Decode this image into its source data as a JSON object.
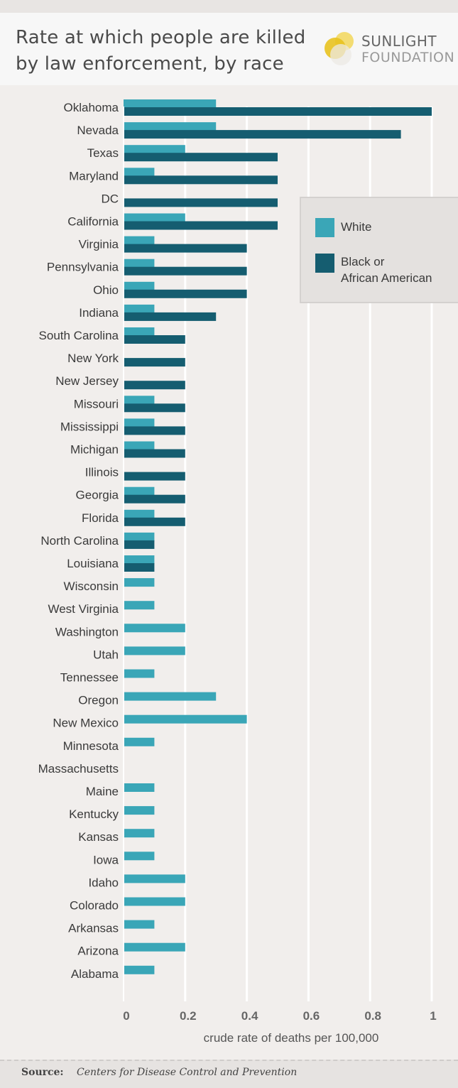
{
  "header": {
    "title": "Rate at which people are killed by law enforcement, by race",
    "logo_line1": "SUNLIGHT",
    "logo_line2": "FOUNDATION"
  },
  "legend": {
    "white_label": "White",
    "black_label_line1": "Black or",
    "black_label_line2": "African American"
  },
  "colors": {
    "white": "#3aa6b7",
    "black": "#155d70",
    "background": "#f1eeec",
    "grid": "#ffffff"
  },
  "footer": {
    "source_label": "Source:",
    "source_text": "Centers for Disease Control and Prevention"
  },
  "chart_data": {
    "type": "bar",
    "orientation": "horizontal",
    "title": "Rate at which people are killed by law enforcement, by race",
    "xlabel": "crude rate of deaths per 100,000",
    "ylabel": "",
    "xlim": [
      0,
      1
    ],
    "xticks": [
      "0",
      "0.2",
      "0.4",
      "0.6",
      "0.8",
      "1"
    ],
    "grid": true,
    "legend_position": "right",
    "categories": [
      "Oklahoma",
      "Nevada",
      "Texas",
      "Maryland",
      "DC",
      "California",
      "Virginia",
      "Pennsylvania",
      "Ohio",
      "Indiana",
      "South Carolina",
      "New York",
      "New Jersey",
      "Missouri",
      "Mississippi",
      "Michigan",
      "Illinois",
      "Georgia",
      "Florida",
      "North Carolina",
      "Louisiana",
      "Wisconsin",
      "West Virginia",
      "Washington",
      "Utah",
      "Tennessee",
      "Oregon",
      "New Mexico",
      "Minnesota",
      "Massachusetts",
      "Maine",
      "Kentucky",
      "Kansas",
      "Iowa",
      "Idaho",
      "Colorado",
      "Arkansas",
      "Arizona",
      "Alabama"
    ],
    "series": [
      {
        "name": "White",
        "values": [
          0.3,
          0.3,
          0.2,
          0.1,
          null,
          0.2,
          0.1,
          0.1,
          0.1,
          0.1,
          0.1,
          null,
          null,
          0.1,
          0.1,
          0.1,
          null,
          0.1,
          0.1,
          0.1,
          0.1,
          0.1,
          0.1,
          0.2,
          0.2,
          0.1,
          0.3,
          0.4,
          0.1,
          null,
          0.1,
          0.1,
          0.1,
          0.1,
          0.2,
          0.2,
          0.1,
          0.2,
          0.1
        ]
      },
      {
        "name": "Black or African American",
        "values": [
          1.0,
          0.9,
          0.5,
          0.5,
          0.5,
          0.5,
          0.4,
          0.4,
          0.4,
          0.3,
          0.2,
          0.2,
          0.2,
          0.2,
          0.2,
          0.2,
          0.2,
          0.2,
          0.2,
          0.1,
          0.1,
          null,
          null,
          null,
          null,
          null,
          null,
          null,
          null,
          null,
          null,
          null,
          null,
          null,
          null,
          null,
          null,
          null,
          null
        ]
      }
    ]
  }
}
